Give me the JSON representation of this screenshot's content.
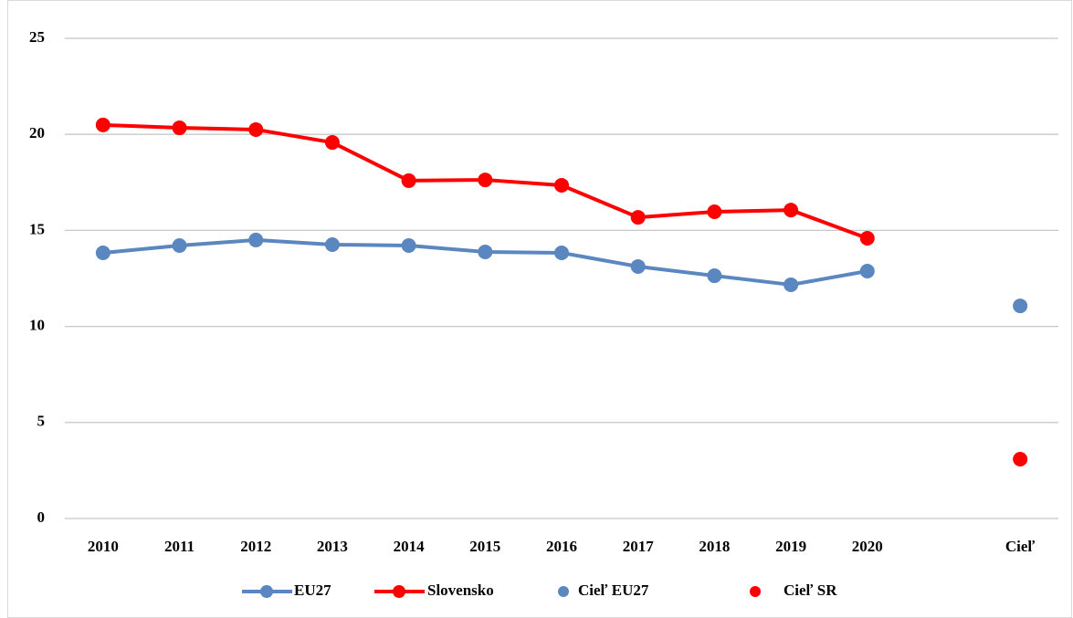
{
  "chart_data": {
    "type": "line",
    "categories": [
      "2010",
      "2011",
      "2012",
      "2013",
      "2014",
      "2015",
      "2016",
      "2017",
      "2018",
      "2019",
      "2020",
      null,
      "Cieľ"
    ],
    "series": [
      {
        "name": "EU27",
        "color": "#5b87c0",
        "mode": "lines+markers",
        "values": [
          13.83,
          14.21,
          14.5,
          14.26,
          14.21,
          13.88,
          13.83,
          13.12,
          12.64,
          12.17,
          12.88,
          null,
          null
        ]
      },
      {
        "name": "Slovensko",
        "color": "#ff0000",
        "mode": "lines+markers",
        "values": [
          20.49,
          20.34,
          20.25,
          19.58,
          17.59,
          17.63,
          17.35,
          15.68,
          15.97,
          16.06,
          14.59,
          null,
          null
        ]
      },
      {
        "name": "Cieľ EU27",
        "color": "#5b87c0",
        "mode": "markers",
        "values": [
          null,
          null,
          null,
          null,
          null,
          null,
          null,
          null,
          null,
          null,
          null,
          null,
          11.07
        ]
      },
      {
        "name": "Cieľ SR",
        "color": "#ff0000",
        "mode": "markers",
        "values": [
          null,
          null,
          null,
          null,
          null,
          null,
          null,
          null,
          null,
          null,
          null,
          null,
          3.09
        ]
      }
    ],
    "ylim": [
      0,
      25
    ],
    "yticks": [
      0,
      5,
      10,
      15,
      20,
      25
    ],
    "grid": true,
    "legend": "bottom"
  }
}
